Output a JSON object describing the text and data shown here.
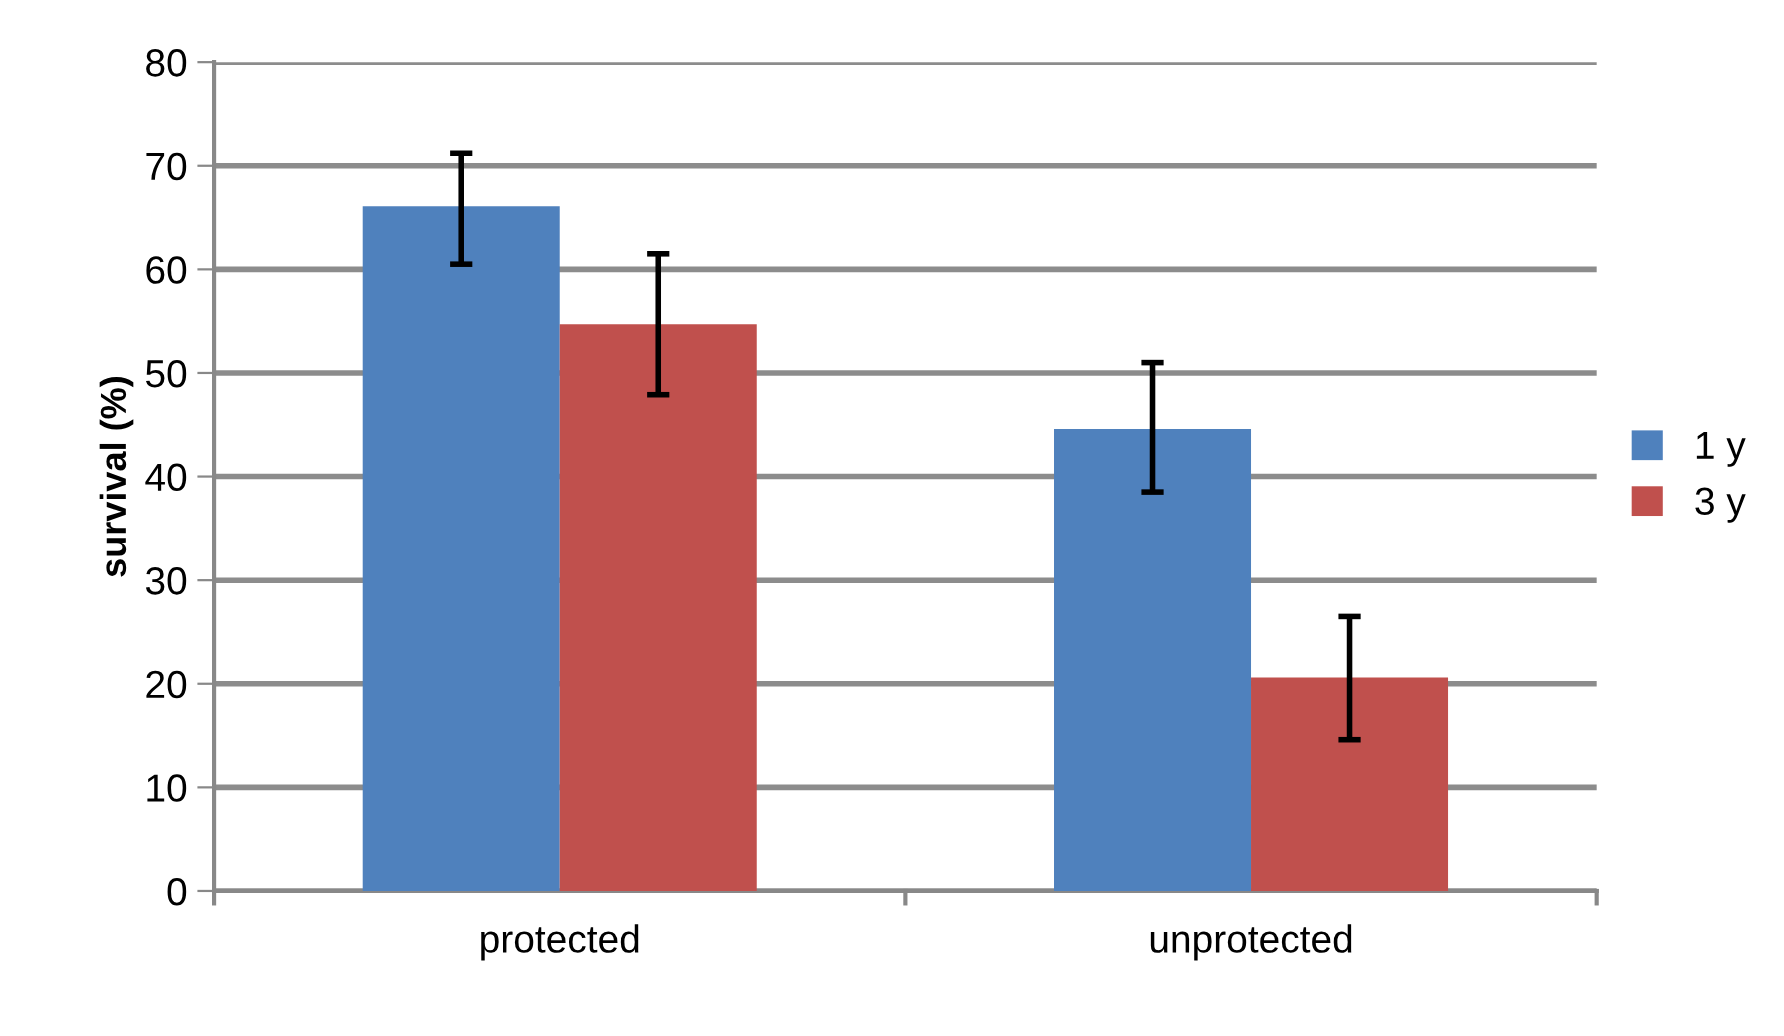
{
  "chart_data": {
    "type": "bar",
    "ylabel": "survival (%)",
    "categories": [
      "protected",
      "unprotected"
    ],
    "series": [
      {
        "name": "1 y",
        "color": "#4f81bd",
        "values": [
          66.1,
          44.6
        ],
        "errors": [
          [
            60.5,
            71.2
          ],
          [
            38.5,
            51.0
          ]
        ]
      },
      {
        "name": "3 y",
        "color": "#c0504d",
        "values": [
          54.7,
          20.6
        ],
        "errors": [
          [
            47.9,
            61.5
          ],
          [
            14.6,
            26.5
          ]
        ]
      }
    ],
    "ylim": [
      0,
      80
    ],
    "yticks": [
      0,
      10,
      20,
      30,
      40,
      50,
      60,
      70,
      80
    ],
    "grid": "y",
    "legend": "right"
  }
}
